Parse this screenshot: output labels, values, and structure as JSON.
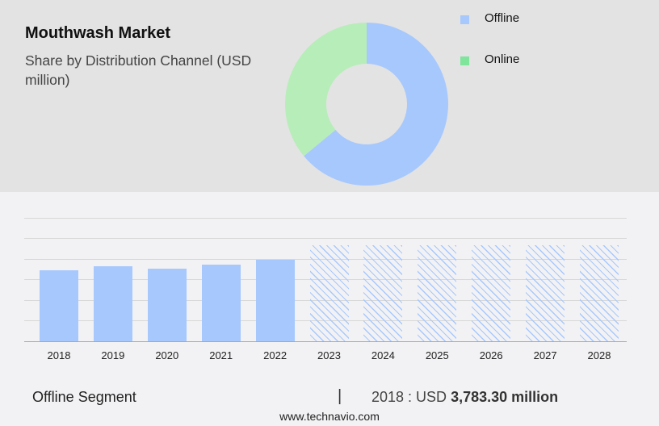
{
  "header": {
    "title": "Mouthwash Market",
    "subtitle": "Share by Distribution Channel (USD million)"
  },
  "legend": {
    "items": [
      {
        "label": "Offline",
        "color": "#a7c8fd"
      },
      {
        "label": "Online",
        "color": "#7ee59b"
      }
    ]
  },
  "footer": {
    "segment": "Offline Segment",
    "separator": "|",
    "year_prefix": "2018 : USD",
    "value": "3,783.30 million",
    "website": "www.technavio.com"
  },
  "colors": {
    "offline": "#a7c8fd",
    "online_donut": "#b7edb9",
    "online_legend": "#7ee59b",
    "top_panel_bg": "#e3e3e3",
    "chart_bg": "#f2f2f4"
  },
  "chart_data": [
    {
      "type": "pie",
      "variant": "donut",
      "title": "Mouthwash Market - Share by Distribution Channel (USD million)",
      "labels": [
        "Offline",
        "Online"
      ],
      "values": [
        64,
        36
      ],
      "unit": "percent (estimated)",
      "legend_position": "right"
    },
    {
      "type": "bar",
      "title": "Offline Segment",
      "categories": [
        "2018",
        "2019",
        "2020",
        "2021",
        "2022",
        "2023",
        "2024",
        "2025",
        "2026",
        "2027",
        "2028"
      ],
      "series": [
        {
          "name": "Offline (actual)",
          "values": [
            3783.3,
            3980,
            3870,
            4100,
            4350,
            null,
            null,
            null,
            null,
            null,
            null
          ]
        },
        {
          "name": "Offline (forecast, hatched)",
          "values": [
            null,
            null,
            null,
            null,
            null,
            5100,
            5100,
            5100,
            5100,
            5100,
            5100
          ]
        }
      ],
      "xlabel": "",
      "ylabel": "USD million",
      "ylim": [
        0,
        7000
      ],
      "grid": true,
      "yticks_shown": false,
      "annotation": "2018 : USD 3,783.30 million"
    }
  ]
}
